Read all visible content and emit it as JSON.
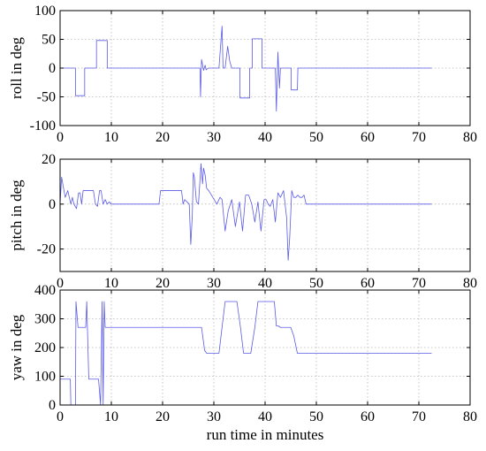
{
  "figure": {
    "xlabel": "run time in minutes",
    "trace_color": "#5a5ae6"
  },
  "chart_data": [
    {
      "type": "line",
      "ylabel": "roll in deg",
      "xlim": [
        0,
        80
      ],
      "ylim": [
        -100,
        100
      ],
      "xticks": [
        0,
        10,
        20,
        30,
        40,
        50,
        60,
        70,
        80
      ],
      "yticks": [
        -100,
        -50,
        0,
        50,
        100
      ],
      "grid": true,
      "series": [
        {
          "x": [
            0,
            3.0,
            3.0,
            4.8,
            4.8,
            7.1,
            7.1,
            9.2,
            9.2,
            27.3,
            27.4,
            27.6,
            28.0,
            28.3,
            28.5,
            28.9,
            31.0,
            31.6,
            31.6,
            31.8,
            32.2,
            32.7,
            33.1,
            33.5,
            35.1,
            35.1,
            37.0,
            37.0,
            37.5,
            37.5,
            39.4,
            39.4,
            42.0,
            42.2,
            42.5,
            42.8,
            43.0,
            45.1,
            45.1,
            46.3,
            46.4,
            72.5
          ],
          "y": [
            0,
            0,
            -48,
            -48,
            0,
            0,
            48,
            48,
            0,
            0,
            -50,
            15,
            -4,
            5,
            -3,
            0,
            0,
            73,
            73,
            0,
            0,
            38,
            12,
            0,
            0,
            -52,
            -52,
            0,
            0,
            51,
            51,
            0,
            0,
            -75,
            28,
            -35,
            0,
            0,
            -38,
            -38,
            0,
            0
          ]
        }
      ]
    },
    {
      "type": "line",
      "ylabel": "pitch in deg",
      "xlim": [
        0,
        80
      ],
      "ylim": [
        -30,
        20
      ],
      "xticks": [
        0,
        10,
        20,
        30,
        40,
        50,
        60,
        70,
        80
      ],
      "yticks": [
        -20,
        0,
        20
      ],
      "grid": true,
      "series": [
        {
          "x": [
            0,
            0.3,
            0.6,
            1.0,
            1.5,
            2.1,
            2.4,
            2.7,
            3.2,
            3.6,
            3.9,
            4.2,
            4.5,
            6.5,
            6.9,
            7.3,
            7.7,
            8.0,
            8.4,
            8.8,
            9.2,
            9.6,
            10.0,
            19.3,
            19.6,
            20.0,
            23.7,
            24.0,
            24.3,
            25.2,
            25.5,
            25.8,
            26.0,
            26.2,
            26.6,
            27.0,
            27.5,
            27.8,
            28.0,
            28.3,
            28.6,
            29.0,
            29.8,
            30.6,
            31.2,
            31.6,
            32.2,
            32.8,
            33.5,
            34.2,
            35.0,
            35.6,
            36.2,
            36.8,
            37.4,
            38.0,
            38.6,
            39.2,
            39.8,
            40.2,
            40.6,
            41.0,
            41.5,
            42.0,
            42.5,
            43.0,
            43.6,
            44.2,
            44.5,
            44.8,
            45.2,
            45.6,
            46.0,
            46.4,
            46.8,
            47.2,
            47.6,
            48.0,
            72.5
          ],
          "y": [
            0,
            12,
            8,
            3,
            6,
            0,
            3,
            0,
            -2,
            5,
            5,
            0,
            6,
            6,
            0,
            -1,
            6,
            6,
            0,
            2,
            0,
            1,
            0,
            0,
            6,
            6,
            6,
            0,
            2,
            0,
            -18,
            -5,
            14,
            12,
            1,
            0,
            18,
            9,
            16,
            13,
            7,
            6,
            3,
            0,
            3,
            2,
            -12,
            -3,
            2,
            -10,
            1,
            -12,
            4,
            4,
            0,
            -8,
            1,
            -12,
            2,
            2,
            0,
            -1,
            2,
            -8,
            5,
            3,
            6,
            -6,
            -25,
            -15,
            6,
            3,
            3,
            4,
            3,
            3,
            4,
            0,
            0
          ]
        }
      ]
    },
    {
      "type": "line",
      "ylabel": "yaw in deg",
      "xlim": [
        0,
        80
      ],
      "ylim": [
        0,
        400
      ],
      "xticks": [
        0,
        10,
        20,
        30,
        40,
        50,
        60,
        70,
        80
      ],
      "yticks": [
        0,
        100,
        200,
        300,
        400
      ],
      "grid": true,
      "series": [
        {
          "x": [
            0,
            2.0,
            2.1,
            3.0,
            3.1,
            3.5,
            4.2,
            5.0,
            5.2,
            5.6,
            7.5,
            7.9,
            8.2,
            8.4,
            8.6,
            8.8,
            9.2,
            27.6,
            28.2,
            28.6,
            31.0,
            31.6,
            32.2,
            32.8,
            34.5,
            35.2,
            35.8,
            37.2,
            38.0,
            38.6,
            41.8,
            42.2,
            42.6,
            43.0,
            45.0,
            45.6,
            46.3,
            72.5
          ],
          "y": [
            90,
            90,
            0,
            0,
            360,
            270,
            270,
            270,
            360,
            90,
            90,
            0,
            360,
            0,
            360,
            270,
            270,
            270,
            190,
            180,
            180,
            270,
            360,
            360,
            360,
            270,
            180,
            180,
            270,
            360,
            360,
            275,
            275,
            270,
            270,
            240,
            180,
            180
          ]
        }
      ]
    }
  ]
}
